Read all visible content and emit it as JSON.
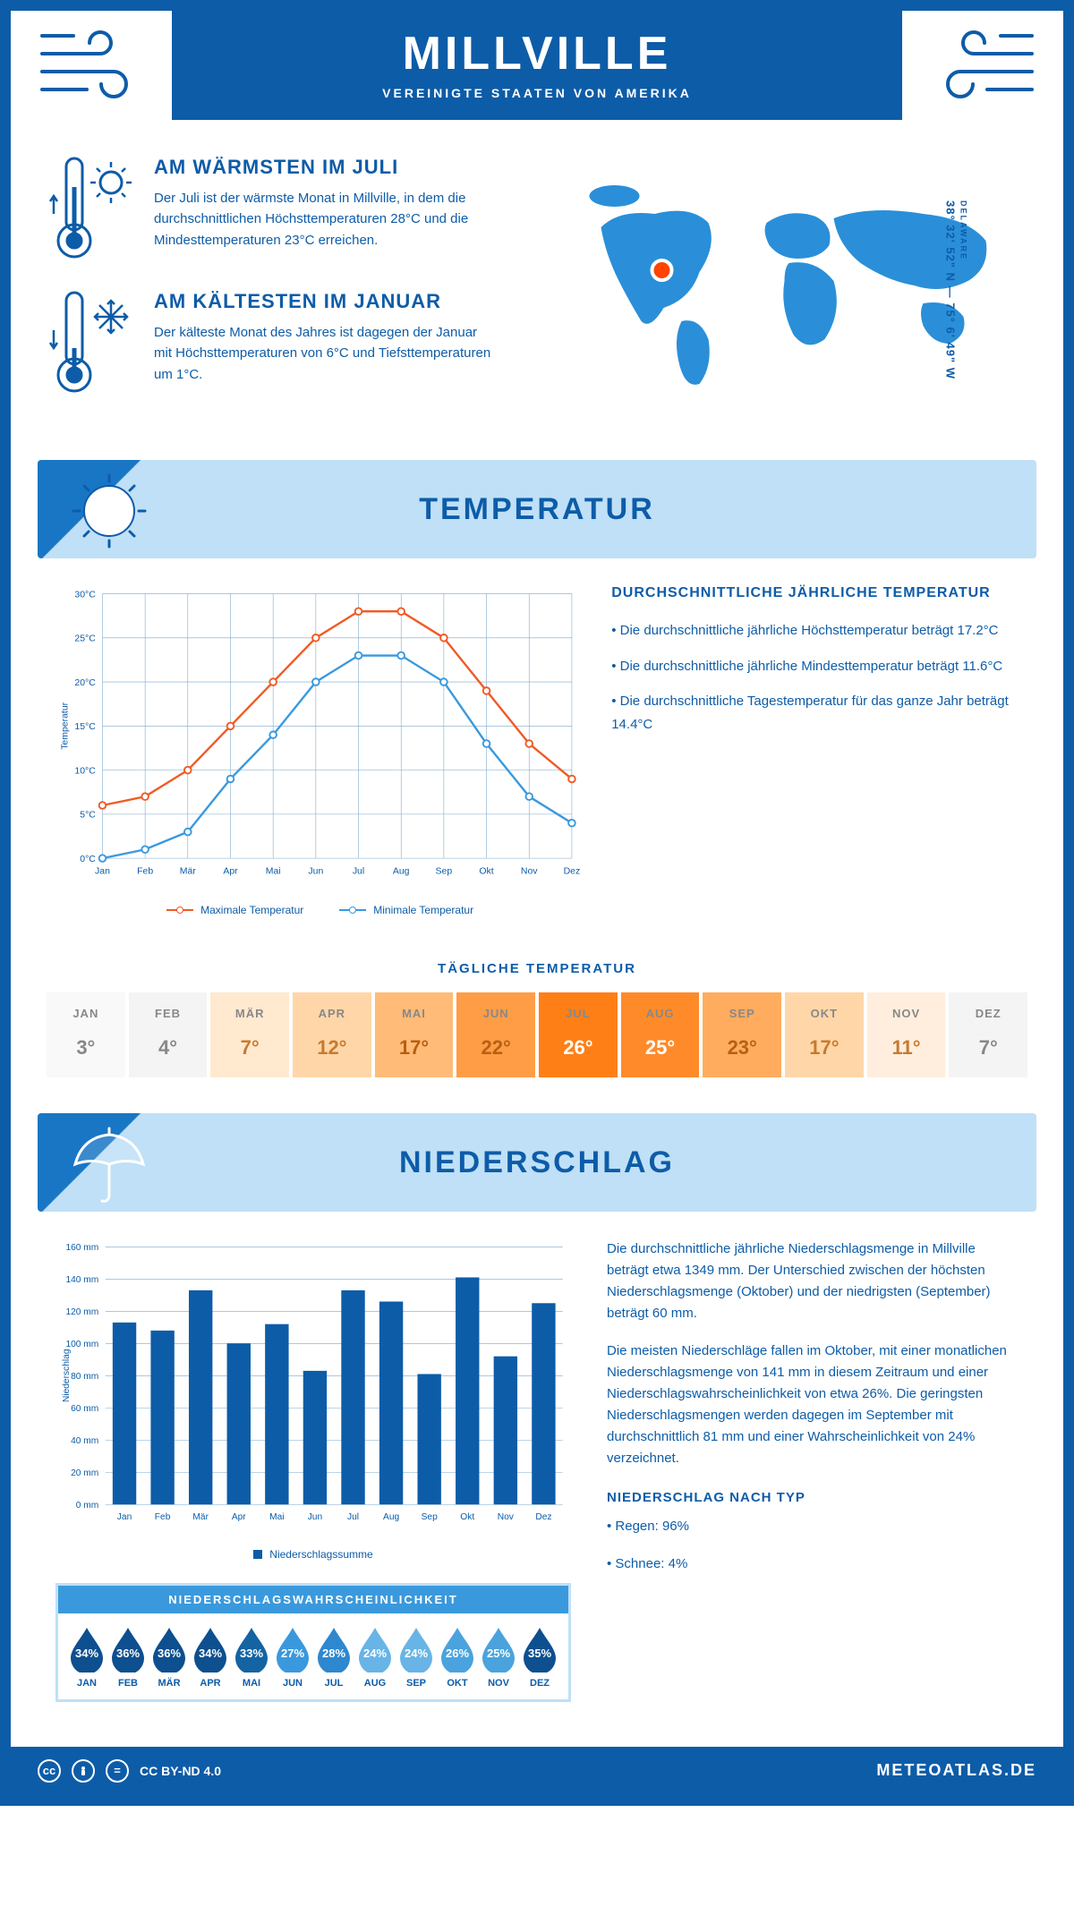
{
  "header": {
    "title": "MILLVILLE",
    "subtitle": "VEREINIGTE STAATEN VON AMERIKA"
  },
  "coords": {
    "text": "38° 32' 52\" N — 75° 6' 49\" W",
    "region": "DELAWARE"
  },
  "warmest": {
    "heading": "AM WÄRMSTEN IM JULI",
    "body": "Der Juli ist der wärmste Monat in Millville, in dem die durchschnittlichen Höchsttemperaturen 28°C und die Mindesttemperaturen 23°C erreichen."
  },
  "coldest": {
    "heading": "AM KÄLTESTEN IM JANUAR",
    "body": "Der kälteste Monat des Jahres ist dagegen der Januar mit Höchsttemperaturen von 6°C und Tiefsttemperaturen um 1°C."
  },
  "sections": {
    "temperature": "TEMPERATUR",
    "precipitation": "NIEDERSCHLAG"
  },
  "temp_chart": {
    "months": [
      "Jan",
      "Feb",
      "Mär",
      "Apr",
      "Mai",
      "Jun",
      "Jul",
      "Aug",
      "Sep",
      "Okt",
      "Nov",
      "Dez"
    ],
    "max": [
      6,
      7,
      10,
      15,
      20,
      25,
      28,
      28,
      25,
      19,
      13,
      9
    ],
    "min": [
      0,
      1,
      3,
      9,
      14,
      20,
      23,
      23,
      20,
      13,
      7,
      4
    ],
    "max_color": "#f15a24",
    "min_color": "#3a99dd",
    "ylim": [
      0,
      30
    ],
    "ytick_step": 5,
    "y_suffix": "°C",
    "y_axis_label": "Temperatur",
    "grid_color": "#7aa8cc",
    "legend_max": "Maximale Temperatur",
    "legend_min": "Minimale Temperatur"
  },
  "temp_text": {
    "heading": "DURCHSCHNITTLICHE JÄHRLICHE TEMPERATUR",
    "b1": "• Die durchschnittliche jährliche Höchsttemperatur beträgt 17.2°C",
    "b2": "• Die durchschnittliche jährliche Mindesttemperatur beträgt 11.6°C",
    "b3": "• Die durchschnittliche Tagestemperatur für das ganze Jahr beträgt 14.4°C"
  },
  "daily": {
    "title": "TÄGLICHE TEMPERATUR",
    "months": [
      "JAN",
      "FEB",
      "MÄR",
      "APR",
      "MAI",
      "JUN",
      "JUL",
      "AUG",
      "SEP",
      "OKT",
      "NOV",
      "DEZ"
    ],
    "values": [
      "3°",
      "4°",
      "7°",
      "12°",
      "17°",
      "22°",
      "26°",
      "25°",
      "23°",
      "17°",
      "11°",
      "7°"
    ],
    "bg_colors": [
      "#f9f9f9",
      "#f4f4f4",
      "#ffe9cf",
      "#ffd6a8",
      "#ffbb77",
      "#ff9d47",
      "#ff7f17",
      "#ff8a2a",
      "#ffac5e",
      "#ffd6a8",
      "#ffeedd",
      "#f4f4f4"
    ],
    "text_colors": [
      "#888888",
      "#888888",
      "#c77a2f",
      "#c77a2f",
      "#b85f12",
      "#b85f12",
      "#ffffff",
      "#ffffff",
      "#b85f12",
      "#c77a2f",
      "#c77a2f",
      "#888888"
    ]
  },
  "precip_chart": {
    "months": [
      "Jan",
      "Feb",
      "Mär",
      "Apr",
      "Mai",
      "Jun",
      "Jul",
      "Aug",
      "Sep",
      "Okt",
      "Nov",
      "Dez"
    ],
    "values": [
      113,
      108,
      133,
      100,
      112,
      83,
      133,
      126,
      81,
      141,
      92,
      125
    ],
    "bar_color": "#0d5ca8",
    "ylim": [
      0,
      160
    ],
    "ytick_step": 20,
    "y_suffix": " mm",
    "y_axis_label": "Niederschlag",
    "grid_color": "#7aa8cc",
    "legend": "Niederschlagssumme"
  },
  "precip_text": {
    "p1": "Die durchschnittliche jährliche Niederschlagsmenge in Millville beträgt etwa 1349 mm. Der Unterschied zwischen der höchsten Niederschlagsmenge (Oktober) und der niedrigsten (September) beträgt 60 mm.",
    "p2": "Die meisten Niederschläge fallen im Oktober, mit einer monatlichen Niederschlagsmenge von 141 mm in diesem Zeitraum und einer Niederschlagswahrscheinlichkeit von etwa 26%. Die geringsten Niederschlagsmengen werden dagegen im September mit durchschnittlich 81 mm und einer Wahrscheinlichkeit von 24% verzeichnet.",
    "type_heading": "NIEDERSCHLAG NACH TYP",
    "type1": "• Regen: 96%",
    "type2": "• Schnee: 4%"
  },
  "prob": {
    "heading": "NIEDERSCHLAGSWAHRSCHEINLICHKEIT",
    "months": [
      "JAN",
      "FEB",
      "MÄR",
      "APR",
      "MAI",
      "JUN",
      "JUL",
      "AUG",
      "SEP",
      "OKT",
      "NOV",
      "DEZ"
    ],
    "values": [
      "34%",
      "36%",
      "36%",
      "34%",
      "33%",
      "27%",
      "28%",
      "24%",
      "24%",
      "26%",
      "25%",
      "35%"
    ],
    "colors": [
      "#0d4f8f",
      "#0d4f8f",
      "#0d4f8f",
      "#0d4f8f",
      "#1463a3",
      "#3a99dd",
      "#2d88cf",
      "#68b4e6",
      "#68b4e6",
      "#4aa3dd",
      "#4aa3dd",
      "#0d4f8f"
    ]
  },
  "footer": {
    "license": "CC BY-ND 4.0",
    "brand": "METEOATLAS.DE"
  },
  "colors": {
    "primary": "#0d5ca8",
    "banner_bg": "#bfe0f7",
    "map_fill": "#2a8fd8"
  }
}
